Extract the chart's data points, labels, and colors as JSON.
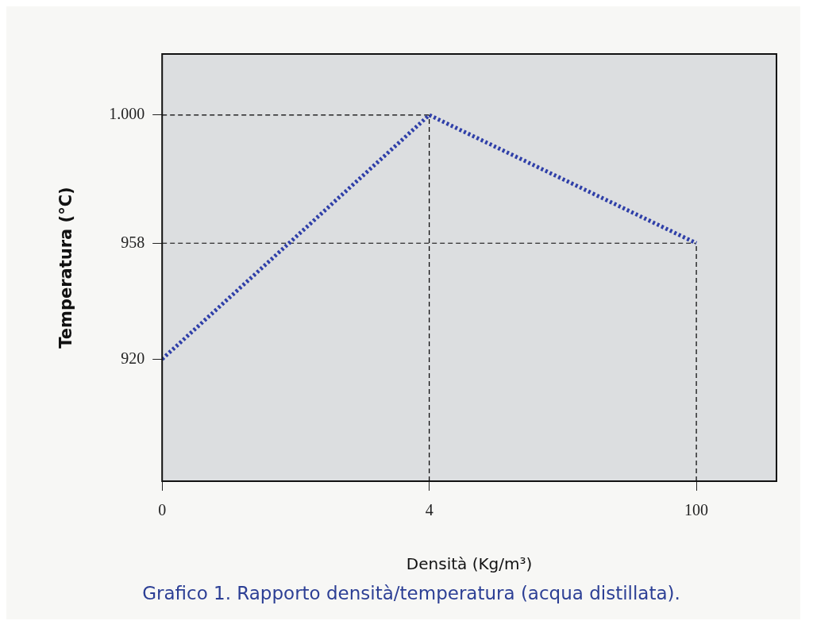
{
  "chart_data": {
    "type": "line",
    "xlabel": "Densità (Kg/m³)",
    "ylabel": "Temperatura (°C)",
    "categories": [
      "0",
      "4",
      "100"
    ],
    "series": [
      {
        "color": "#2f3fa8",
        "values": [
          920,
          1000,
          958
        ]
      }
    ],
    "ylim": [
      880,
      1020
    ],
    "yticks": [
      920,
      958,
      {
        "value": 1000,
        "label": "1.000"
      }
    ],
    "ref_lines": [
      {
        "axis": "y",
        "value": 1000,
        "color": "#000000",
        "line_style": "dashed"
      },
      {
        "axis": "y",
        "value": 958,
        "color": "#000000",
        "line_style": "dashed"
      },
      {
        "axis": "x",
        "value": "4",
        "color": "#000000",
        "line_style": "dashed"
      },
      {
        "axis": "x",
        "value": "100",
        "color": "#000000",
        "line_style": "dashed"
      }
    ],
    "line_style": "dotted",
    "marker": "none",
    "legend": false,
    "annotations": [
      "Grafico 1. Rapporto densità/temperatura (acqua distillata)."
    ]
  }
}
